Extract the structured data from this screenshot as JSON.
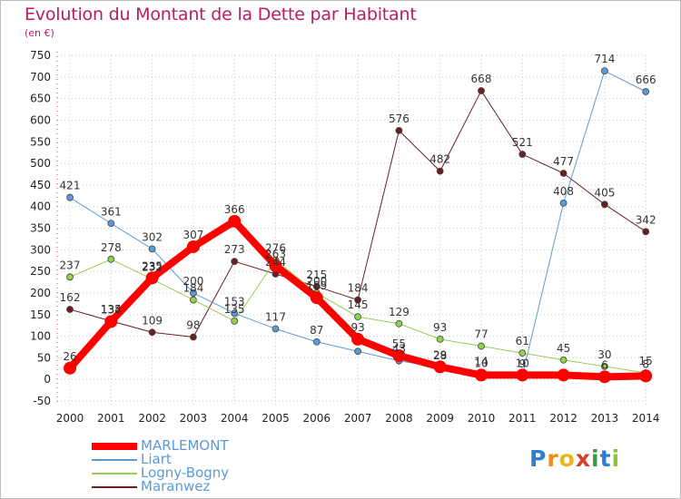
{
  "title": "Evolution du Montant de la Dette par Habitant",
  "unit": "(en €)",
  "logo": {
    "letters": [
      {
        "ch": "P",
        "color": "#2f7fd0"
      },
      {
        "ch": "r",
        "color": "#f08a1c"
      },
      {
        "ch": "o",
        "color": "#e8b619"
      },
      {
        "ch": "x",
        "color": "#d63d2a"
      },
      {
        "ch": "i",
        "color": "#3a9a3a"
      },
      {
        "ch": "t",
        "color": "#2f7fd0"
      },
      {
        "ch": "i",
        "color": "#8fc43a"
      }
    ]
  },
  "chart_data": {
    "type": "line",
    "categories": [
      "2000",
      "2001",
      "2002",
      "2003",
      "2004",
      "2005",
      "2006",
      "2007",
      "2008",
      "2009",
      "2010",
      "2011",
      "2012",
      "2013",
      "2014"
    ],
    "ylim": [
      -50,
      750
    ],
    "yticks": [
      -50,
      0,
      50,
      100,
      150,
      200,
      250,
      300,
      350,
      400,
      450,
      500,
      550,
      600,
      650,
      700,
      750
    ],
    "grid": "horizontal dotted",
    "legend_position": "bottom-left",
    "series": [
      {
        "name": "Maranwez",
        "color": "#6b1f24",
        "values": [
          162,
          135,
          109,
          98,
          273,
          244,
          215,
          184,
          576,
          482,
          668,
          521,
          477,
          405,
          342
        ],
        "width": 1,
        "marker": 3.5
      },
      {
        "name": "Logny-Bogny",
        "color": "#92d050",
        "values": [
          237,
          278,
          232,
          184,
          135,
          276,
          200,
          145,
          129,
          93,
          77,
          61,
          45,
          30,
          15
        ],
        "width": 1,
        "marker": 3.5
      },
      {
        "name": "Liart",
        "color": "#5b9bd5",
        "values": [
          421,
          361,
          302,
          200,
          153,
          117,
          87,
          65,
          43,
          28,
          14,
          9,
          408,
          714,
          666
        ],
        "width": 1,
        "marker": 3.5
      },
      {
        "name": "MARLEMONT",
        "color": "#ff0000",
        "values": [
          26,
          134,
          235,
          307,
          366,
          263,
          189,
          93,
          55,
          29,
          10,
          10,
          10,
          6,
          8
        ],
        "width": 8,
        "marker": 7
      }
    ],
    "data_labels": [
      {
        "text": "421",
        "s": 2,
        "i": 0
      },
      {
        "text": "361",
        "s": 2,
        "i": 1
      },
      {
        "text": "302",
        "s": 2,
        "i": 2
      },
      {
        "text": "200",
        "s": 2,
        "i": 3
      },
      {
        "text": "153",
        "s": 2,
        "i": 4
      },
      {
        "text": "117",
        "s": 2,
        "i": 5
      },
      {
        "text": "87",
        "s": 2,
        "i": 6
      },
      {
        "text": "43",
        "s": 2,
        "i": 8
      },
      {
        "text": "28",
        "s": 2,
        "i": 9
      },
      {
        "text": "14",
        "s": 2,
        "i": 10
      },
      {
        "text": "9",
        "s": 2,
        "i": 11
      },
      {
        "text": "408",
        "s": 2,
        "i": 12
      },
      {
        "text": "714",
        "s": 2,
        "i": 13
      },
      {
        "text": "666",
        "s": 2,
        "i": 14
      },
      {
        "text": "237",
        "s": 1,
        "i": 0
      },
      {
        "text": "278",
        "s": 1,
        "i": 1
      },
      {
        "text": "232",
        "s": 1,
        "i": 2
      },
      {
        "text": "184",
        "s": 1,
        "i": 3
      },
      {
        "text": "135",
        "s": 1,
        "i": 4
      },
      {
        "text": "276",
        "s": 1,
        "i": 5
      },
      {
        "text": "200",
        "s": 1,
        "i": 6
      },
      {
        "text": "145",
        "s": 1,
        "i": 7
      },
      {
        "text": "129",
        "s": 1,
        "i": 8
      },
      {
        "text": "93",
        "s": 1,
        "i": 9
      },
      {
        "text": "77",
        "s": 1,
        "i": 10
      },
      {
        "text": "61",
        "s": 1,
        "i": 11
      },
      {
        "text": "45",
        "s": 1,
        "i": 12
      },
      {
        "text": "30",
        "s": 1,
        "i": 13
      },
      {
        "text": "15",
        "s": 1,
        "i": 14
      },
      {
        "text": "162",
        "s": 0,
        "i": 0
      },
      {
        "text": "135",
        "s": 0,
        "i": 1
      },
      {
        "text": "109",
        "s": 0,
        "i": 2
      },
      {
        "text": "98",
        "s": 0,
        "i": 3
      },
      {
        "text": "273",
        "s": 0,
        "i": 4
      },
      {
        "text": "244",
        "s": 0,
        "i": 5
      },
      {
        "text": "215",
        "s": 0,
        "i": 6
      },
      {
        "text": "184",
        "s": 0,
        "i": 7
      },
      {
        "text": "576",
        "s": 0,
        "i": 8
      },
      {
        "text": "482",
        "s": 0,
        "i": 9
      },
      {
        "text": "668",
        "s": 0,
        "i": 10
      },
      {
        "text": "521",
        "s": 0,
        "i": 11
      },
      {
        "text": "477",
        "s": 0,
        "i": 12
      },
      {
        "text": "405",
        "s": 0,
        "i": 13
      },
      {
        "text": "342",
        "s": 0,
        "i": 14
      },
      {
        "text": "26",
        "s": 3,
        "i": 0
      },
      {
        "text": "134",
        "s": 3,
        "i": 1
      },
      {
        "text": "235",
        "s": 3,
        "i": 2
      },
      {
        "text": "307",
        "s": 3,
        "i": 3
      },
      {
        "text": "366",
        "s": 3,
        "i": 4
      },
      {
        "text": "263",
        "s": 3,
        "i": 5
      },
      {
        "text": "189",
        "s": 3,
        "i": 6
      },
      {
        "text": "93",
        "s": 3,
        "i": 7
      },
      {
        "text": "55",
        "s": 3,
        "i": 8
      },
      {
        "text": "29",
        "s": 3,
        "i": 9
      },
      {
        "text": "10",
        "s": 3,
        "i": 10
      },
      {
        "text": "10",
        "s": 3,
        "i": 11
      },
      {
        "text": "6",
        "s": 3,
        "i": 13
      },
      {
        "text": "8",
        "s": 3,
        "i": 14
      }
    ],
    "legend": [
      "MARLEMONT",
      "Liart",
      "Logny-Bogny",
      "Maranwez"
    ]
  }
}
